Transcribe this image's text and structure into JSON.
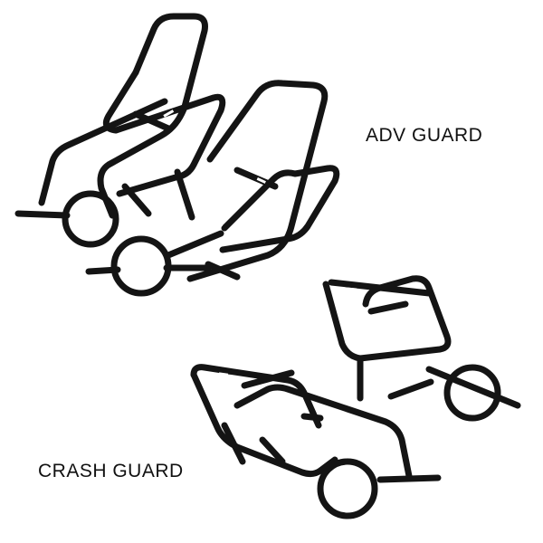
{
  "labels": {
    "adv_guard": "ADV GUARD",
    "crash_guard": "CRASH GUARD"
  },
  "colors": {
    "background": "#ffffff",
    "tube": "#141414",
    "text": "#111111"
  }
}
